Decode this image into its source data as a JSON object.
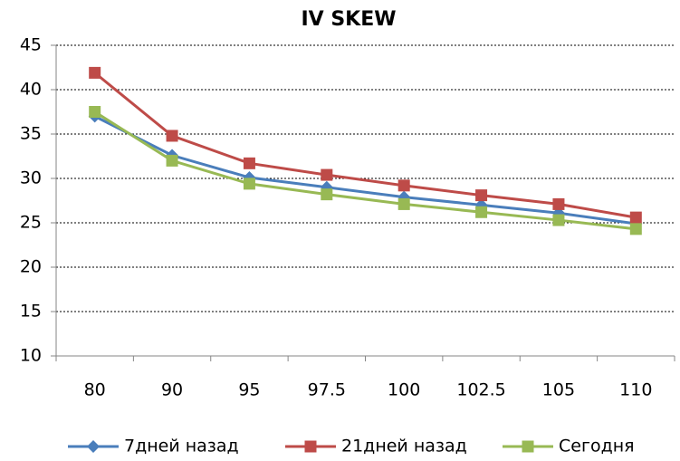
{
  "chart_data": {
    "type": "line",
    "title": "IV SKEW",
    "categories": [
      "80",
      "90",
      "95",
      "97.5",
      "100",
      "102.5",
      "105",
      "110"
    ],
    "series": [
      {
        "name": "7дней назад",
        "color": "#4a7ebb",
        "marker": "diamond",
        "values": [
          37.0,
          32.6,
          30.1,
          29.0,
          27.9,
          27.0,
          26.1,
          24.9
        ]
      },
      {
        "name": "21дней назад",
        "color": "#be4b48",
        "marker": "square",
        "values": [
          41.9,
          34.8,
          31.7,
          30.4,
          29.2,
          28.1,
          27.1,
          25.6
        ]
      },
      {
        "name": "Сегодня",
        "color": "#98b954",
        "marker": "square",
        "values": [
          37.5,
          32.0,
          29.4,
          28.2,
          27.1,
          26.2,
          25.3,
          24.3
        ]
      }
    ],
    "ylim": [
      10,
      45
    ],
    "yticks": [
      10,
      15,
      20,
      25,
      30,
      35,
      40,
      45
    ],
    "grid": true,
    "legend": "bottom"
  }
}
